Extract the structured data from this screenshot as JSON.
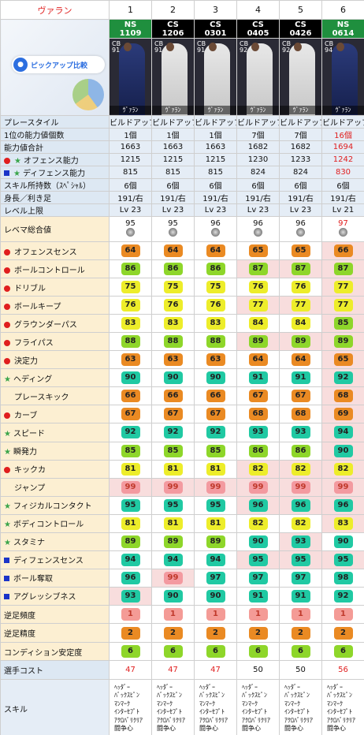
{
  "header": {
    "name": "ヴァラン",
    "cols": [
      "1",
      "2",
      "3",
      "4",
      "5",
      "6"
    ]
  },
  "cards": [
    {
      "type": "NS",
      "num": "1109",
      "pos": "CB",
      "rating": "91",
      "name": "ｳﾞｧﾗﾝ"
    },
    {
      "type": "CS",
      "num": "1206",
      "pos": "CB",
      "rating": "91",
      "name": "ｳﾞｧﾗﾝ"
    },
    {
      "type": "CS",
      "num": "0301",
      "pos": "CB",
      "rating": "91",
      "name": "ｳﾞｧﾗﾝ"
    },
    {
      "type": "CS",
      "num": "0405",
      "pos": "CB",
      "rating": "92",
      "name": "ｳﾞｧﾗﾝ"
    },
    {
      "type": "CS",
      "num": "0426",
      "pos": "CB",
      "rating": "92",
      "name": "ｳﾞｧﾗﾝ"
    },
    {
      "type": "NS",
      "num": "0614",
      "pos": "CB",
      "rating": "94",
      "name": "ｳﾞｧﾗﾝ"
    }
  ],
  "pickup_label": "ピックアップ比較",
  "info_rows": [
    {
      "label": "プレースタイル",
      "vals": [
        "ビルドアップ",
        "ビルドアップ",
        "ビルドアップ",
        "ビルドアップ",
        "ビルドアップ",
        "ビルドアップ"
      ]
    },
    {
      "label": "1位の能力値個数",
      "vals": [
        "1個",
        "1個",
        "1個",
        "7個",
        "7個",
        "16個"
      ]
    },
    {
      "label": "能力値合計",
      "vals": [
        "1663",
        "1663",
        "1663",
        "1682",
        "1682",
        "1694"
      ]
    },
    {
      "label": "オフェンス能力",
      "vals": [
        "1215",
        "1215",
        "1215",
        "1230",
        "1233",
        "1242"
      ]
    },
    {
      "label": "ディフェンス能力",
      "vals": [
        "815",
        "815",
        "815",
        "824",
        "824",
        "830"
      ]
    },
    {
      "label": "スキル所持数（ｽﾍﾟｼｬﾙ）",
      "vals": [
        "6個",
        "6個",
        "6個",
        "6個",
        "6個",
        "6個"
      ]
    },
    {
      "label": "身長／利き足",
      "vals": [
        "191/右",
        "191/右",
        "191/右",
        "191/右",
        "191/右",
        "191/右"
      ]
    },
    {
      "label": "レベル上限",
      "vals": [
        "Lv 23",
        "Lv 23",
        "Lv 23",
        "Lv 23",
        "Lv 23",
        "Lv 21"
      ]
    }
  ],
  "overall": {
    "label": "レベマ総合値",
    "vals": [
      "95",
      "95",
      "96",
      "96",
      "96",
      "97"
    ]
  },
  "stats": [
    {
      "label": "オフェンスセンス",
      "vals": [
        "64",
        "64",
        "64",
        "65",
        "65",
        "66"
      ]
    },
    {
      "label": "ボールコントロール",
      "vals": [
        "86",
        "86",
        "86",
        "87",
        "87",
        "87"
      ]
    },
    {
      "label": "ドリブル",
      "vals": [
        "75",
        "75",
        "75",
        "76",
        "76",
        "77"
      ]
    },
    {
      "label": "ボールキープ",
      "vals": [
        "76",
        "76",
        "76",
        "77",
        "77",
        "77"
      ]
    },
    {
      "label": "グラウンダーパス",
      "vals": [
        "83",
        "83",
        "83",
        "84",
        "84",
        "85"
      ]
    },
    {
      "label": "フライパス",
      "vals": [
        "88",
        "88",
        "88",
        "89",
        "89",
        "89"
      ]
    },
    {
      "label": "決定力",
      "vals": [
        "63",
        "63",
        "63",
        "64",
        "64",
        "65"
      ]
    },
    {
      "label": "ヘディング",
      "vals": [
        "90",
        "90",
        "90",
        "91",
        "91",
        "92"
      ]
    },
    {
      "label": "プレースキック",
      "vals": [
        "66",
        "66",
        "66",
        "67",
        "67",
        "68"
      ]
    },
    {
      "label": "カーブ",
      "vals": [
        "67",
        "67",
        "67",
        "68",
        "68",
        "69"
      ]
    },
    {
      "label": "スピード",
      "vals": [
        "92",
        "92",
        "92",
        "93",
        "93",
        "94"
      ]
    },
    {
      "label": "瞬発力",
      "vals": [
        "85",
        "85",
        "85",
        "86",
        "86",
        "90"
      ]
    },
    {
      "label": "キックカ",
      "vals": [
        "81",
        "81",
        "81",
        "82",
        "82",
        "82"
      ]
    },
    {
      "label": "ジャンプ",
      "vals": [
        "99",
        "99",
        "99",
        "99",
        "99",
        "99"
      ]
    },
    {
      "label": "フィジカルコンタクト",
      "vals": [
        "95",
        "95",
        "95",
        "96",
        "96",
        "96"
      ]
    },
    {
      "label": "ボディコントロール",
      "vals": [
        "81",
        "81",
        "81",
        "82",
        "82",
        "83"
      ]
    },
    {
      "label": "スタミナ",
      "vals": [
        "89",
        "89",
        "89",
        "90",
        "93",
        "90"
      ]
    },
    {
      "label": "ディフェンスセンス",
      "vals": [
        "94",
        "94",
        "94",
        "95",
        "95",
        "95"
      ]
    },
    {
      "label": "ボール奪取",
      "vals": [
        "96",
        "99",
        "97",
        "97",
        "97",
        "98"
      ]
    },
    {
      "label": "アグレッシブネス",
      "vals": [
        "93",
        "90",
        "90",
        "91",
        "91",
        "92"
      ]
    }
  ],
  "foot": [
    {
      "label": "逆足頻度",
      "vals": [
        "1",
        "1",
        "1",
        "1",
        "1",
        "1"
      ]
    },
    {
      "label": "逆足精度",
      "vals": [
        "2",
        "2",
        "2",
        "2",
        "2",
        "2"
      ]
    },
    {
      "label": "コンディション安定度",
      "vals": [
        "6",
        "6",
        "6",
        "6",
        "6",
        "6"
      ]
    }
  ],
  "cost": {
    "label": "選手コスト",
    "vals": [
      "47",
      "47",
      "47",
      "50",
      "50",
      "56"
    ]
  },
  "skills": {
    "label": "スキル",
    "list": [
      "ﾍｯﾀﾞｰ",
      "ﾊﾞｯｸｽﾋﾟﾝ",
      "ﾏﾝﾏｰｸ",
      "ｲﾝﾀｰｾﾌﾟﾄ",
      "ｱｸﾛﾊﾞﾘｸﾘｱ",
      "闘争心"
    ]
  },
  "colors": {
    "red": "#e01e1e",
    "blue_bg": "#e5edf6",
    "beige_bg": "#fcefd2",
    "pink_bg": "#f8dddd"
  }
}
